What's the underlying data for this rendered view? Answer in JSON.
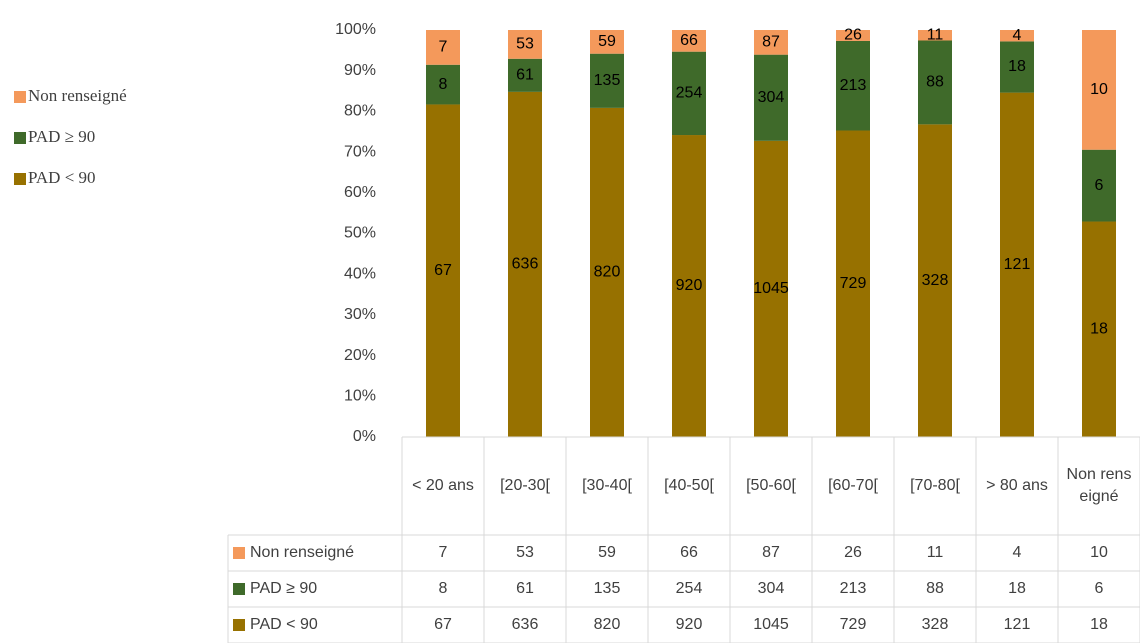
{
  "chart_data": {
    "type": "bar",
    "stacked": "percent",
    "categories": [
      "< 20 ans",
      "[20-30[",
      "[30-40[",
      "[40-50[",
      "[50-60[",
      "[60-70[",
      "[70-80[",
      "> 80 ans",
      "Non renseigné"
    ],
    "series": [
      {
        "name": "PAD < 90",
        "color": "#977100",
        "values": [
          67,
          636,
          820,
          920,
          1045,
          729,
          328,
          121,
          18
        ]
      },
      {
        "name": "PAD ≥ 90",
        "color": "#3f6a2a",
        "values": [
          8,
          61,
          135,
          254,
          304,
          213,
          88,
          18,
          6
        ]
      },
      {
        "name": "Non renseigné",
        "color": "#f4995b",
        "values": [
          7,
          53,
          59,
          66,
          87,
          26,
          11,
          4,
          10
        ]
      }
    ],
    "ylim": [
      0,
      100
    ],
    "yticks": [
      {
        "value": 0,
        "label": "0%"
      },
      {
        "value": 10,
        "label": "10%"
      },
      {
        "value": 20,
        "label": "20%"
      },
      {
        "value": 30,
        "label": "30%"
      },
      {
        "value": 40,
        "label": "40%"
      },
      {
        "value": 50,
        "label": "50%"
      },
      {
        "value": 60,
        "label": "60%"
      },
      {
        "value": 70,
        "label": "70%"
      },
      {
        "value": 80,
        "label": "80%"
      },
      {
        "value": 90,
        "label": "90%"
      },
      {
        "value": 100,
        "label": "100%"
      }
    ],
    "legend": "left",
    "data_table": true
  }
}
